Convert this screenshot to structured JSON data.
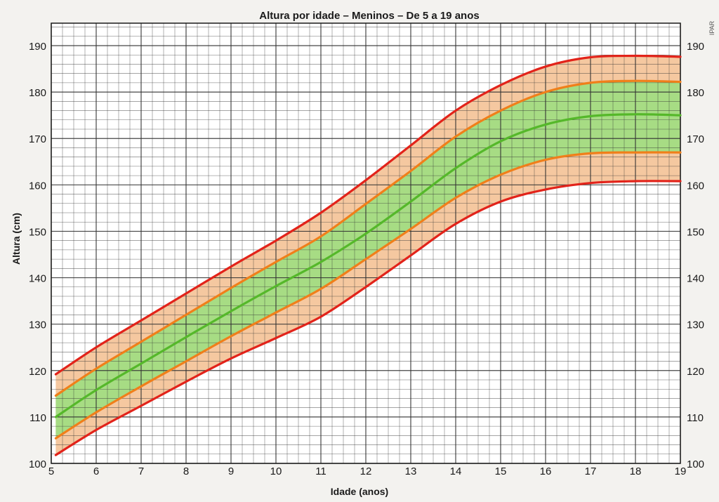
{
  "chart_data": {
    "type": "line",
    "title": "Altura por idade – Meninos – De 5 a 19 anos",
    "xlabel": "Idade (anos)",
    "ylabel": "Altura (cm)",
    "xlim": [
      5,
      19
    ],
    "ylim": [
      100,
      190
    ],
    "x_ticks": [
      5,
      6,
      7,
      8,
      9,
      10,
      11,
      12,
      13,
      14,
      15,
      16,
      17,
      18,
      19
    ],
    "y_ticks_left": [
      100,
      110,
      120,
      130,
      140,
      150,
      160,
      170,
      180,
      190
    ],
    "y_ticks_right": [
      100,
      110,
      120,
      130,
      140,
      150,
      160,
      170,
      180,
      190
    ],
    "grid": true,
    "x": [
      5.1,
      6,
      7,
      8,
      9,
      10,
      11,
      12,
      13,
      14,
      15,
      16,
      17,
      18,
      19
    ],
    "series": [
      {
        "color": "#e2231a",
        "values": [
          119.2,
          125.0,
          130.8,
          136.6,
          142.4,
          148.0,
          154.0,
          161.0,
          168.5,
          176.0,
          181.5,
          185.5,
          187.5,
          187.8,
          187.6
        ]
      },
      {
        "color": "#f07f1a",
        "values": [
          114.6,
          120.4,
          126.2,
          132.0,
          137.8,
          143.4,
          148.9,
          155.9,
          163.0,
          170.4,
          176.0,
          180.0,
          182.0,
          182.4,
          182.2
        ]
      },
      {
        "color": "#55b82a",
        "values": [
          110.0,
          115.8,
          121.5,
          127.2,
          132.8,
          138.2,
          143.4,
          149.5,
          156.4,
          163.6,
          169.4,
          173.0,
          174.8,
          175.2,
          175.0
        ]
      },
      {
        "color": "#f07f1a",
        "values": [
          105.4,
          111.0,
          116.6,
          122.0,
          127.4,
          132.5,
          137.6,
          144.0,
          150.5,
          157.2,
          162.2,
          165.4,
          166.8,
          167.0,
          167.0
        ]
      },
      {
        "color": "#e2231a",
        "values": [
          101.8,
          107.2,
          112.4,
          117.6,
          122.6,
          127.0,
          131.6,
          138.0,
          144.8,
          151.6,
          156.4,
          159.0,
          160.4,
          160.8,
          160.8
        ]
      }
    ],
    "band_colors": {
      "outer": "#f5c8a0",
      "inner": "#a7dc84"
    },
    "axis_color": "#1a1a1a",
    "grid_color": "#333333"
  },
  "side_note": "IPAR"
}
